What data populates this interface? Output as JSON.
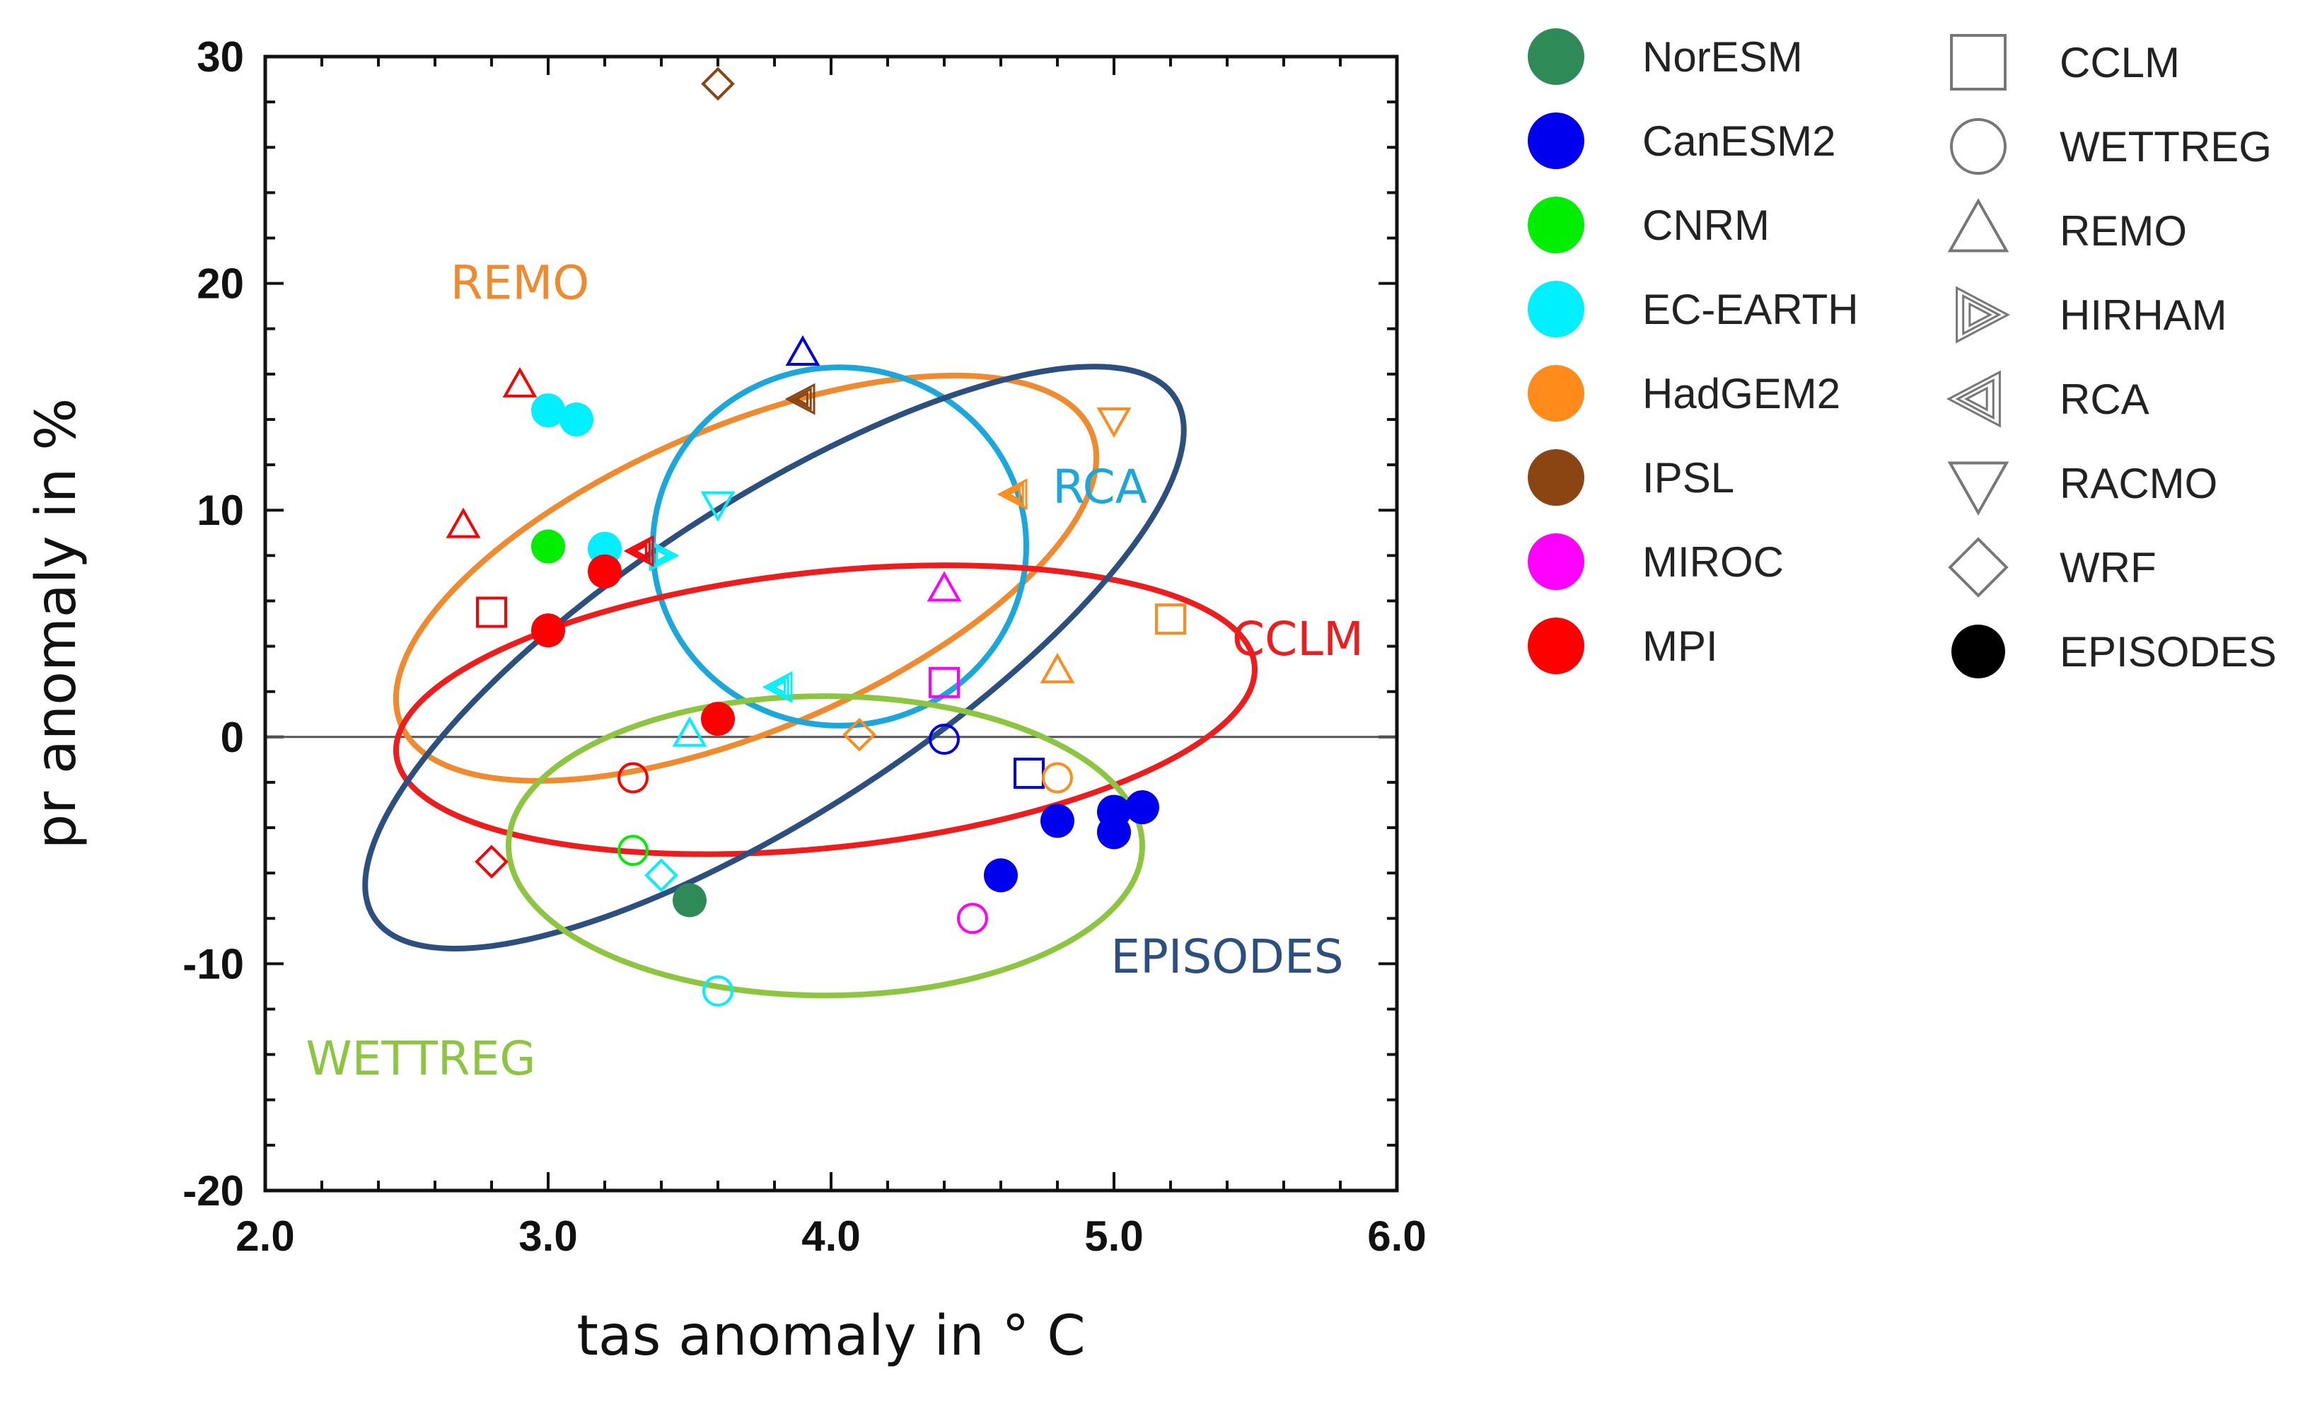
{
  "chart_data": {
    "type": "scatter",
    "xlabel": "tas anomaly in ° C",
    "ylabel": "pr anomaly in %",
    "xlim": [
      2.0,
      6.0
    ],
    "ylim": [
      -20,
      30
    ],
    "xticks": [
      "2.0",
      "3.0",
      "4.0",
      "5.0",
      "6.0"
    ],
    "yticks": [
      "30",
      "20",
      "10",
      "0",
      "-10",
      "-20"
    ],
    "gcm_legend": [
      {
        "name": "NorESM",
        "color": "#2e8b57"
      },
      {
        "name": "CanESM2",
        "color": "#0000ee"
      },
      {
        "name": "CNRM",
        "color": "#00ee00"
      },
      {
        "name": "EC-EARTH",
        "color": "#00f0ff"
      },
      {
        "name": "HadGEM2",
        "color": "#ff8c1a"
      },
      {
        "name": "IPSL",
        "color": "#8b4513"
      },
      {
        "name": "MIROC",
        "color": "#ff00ff"
      },
      {
        "name": "MPI",
        "color": "#ff0000"
      }
    ],
    "rcm_legend": [
      {
        "name": "CCLM",
        "marker": "square"
      },
      {
        "name": "WETTREG",
        "marker": "circle"
      },
      {
        "name": "REMO",
        "marker": "triangle-up"
      },
      {
        "name": "HIRHAM",
        "marker": "triangle-right"
      },
      {
        "name": "RCA",
        "marker": "triangle-left"
      },
      {
        "name": "RACMO",
        "marker": "triangle-down"
      },
      {
        "name": "WRF",
        "marker": "diamond"
      },
      {
        "name": "EPISODES",
        "marker": "filled-circle"
      }
    ],
    "ellipses": [
      {
        "label": "REMO",
        "color": "#f08a2c",
        "cx": 3.7,
        "cy": 7.0,
        "rx": 1.3,
        "ry": 7.0,
        "label_x": 2.9,
        "label_y": 20.0
      },
      {
        "label": "RCA",
        "color": "#1aa7dc",
        "cx": 4.03,
        "cy": 8.4,
        "rx": 0.66,
        "ry": 7.9,
        "label_x": 4.95,
        "label_y": 11.0
      },
      {
        "label": "CCLM",
        "color": "#f01b1b",
        "cx": 3.98,
        "cy": 1.2,
        "rx": 1.55,
        "ry": 5.0,
        "label_x": 5.65,
        "label_y": 4.3
      },
      {
        "label": "EPISODES",
        "color": "#2b4f7e",
        "cx": 3.8,
        "cy": 3.5,
        "rx": 1.5,
        "ry": 11.5,
        "label_x": 5.4,
        "label_y": -9.7
      },
      {
        "label": "WETTREG",
        "color": "#8cc63e",
        "cx": 3.98,
        "cy": -4.8,
        "rx": 1.12,
        "ry": 6.6,
        "label_x": 2.55,
        "label_y": -14.2
      }
    ],
    "points": [
      {
        "gcm": "NorESM",
        "rcm": "EPISODES",
        "x": 3.5,
        "y": -7.2
      },
      {
        "gcm": "CanESM2",
        "rcm": "EPISODES",
        "x": 4.6,
        "y": -6.1
      },
      {
        "gcm": "CanESM2",
        "rcm": "EPISODES",
        "x": 4.8,
        "y": -3.7
      },
      {
        "gcm": "CanESM2",
        "rcm": "EPISODES",
        "x": 5.0,
        "y": -3.3
      },
      {
        "gcm": "CanESM2",
        "rcm": "EPISODES",
        "x": 5.0,
        "y": -4.2
      },
      {
        "gcm": "CanESM2",
        "rcm": "EPISODES",
        "x": 5.1,
        "y": -3.1
      },
      {
        "gcm": "CNRM",
        "rcm": "EPISODES",
        "x": 3.0,
        "y": 8.4
      },
      {
        "gcm": "EC-EARTH",
        "rcm": "EPISODES",
        "x": 3.0,
        "y": 14.4
      },
      {
        "gcm": "EC-EARTH",
        "rcm": "EPISODES",
        "x": 3.1,
        "y": 14.0
      },
      {
        "gcm": "EC-EARTH",
        "rcm": "EPISODES",
        "x": 3.2,
        "y": 8.3
      },
      {
        "gcm": "MPI",
        "rcm": "EPISODES",
        "x": 3.0,
        "y": 4.7
      },
      {
        "gcm": "MPI",
        "rcm": "EPISODES",
        "x": 3.2,
        "y": 7.3
      },
      {
        "gcm": "MPI",
        "rcm": "EPISODES",
        "x": 3.6,
        "y": 0.8
      },
      {
        "gcm": "MPI",
        "rcm": "CCLM",
        "x": 2.8,
        "y": 5.5
      },
      {
        "gcm": "CanESM2",
        "rcm": "CCLM",
        "x": 4.7,
        "y": -1.6
      },
      {
        "gcm": "HadGEM2",
        "rcm": "CCLM",
        "x": 5.2,
        "y": 5.2
      },
      {
        "gcm": "MIROC",
        "rcm": "CCLM",
        "x": 4.4,
        "y": 2.4
      },
      {
        "gcm": "MPI",
        "rcm": "WETTREG",
        "x": 3.3,
        "y": -1.8
      },
      {
        "gcm": "CNRM",
        "rcm": "WETTREG",
        "x": 3.3,
        "y": -5.0
      },
      {
        "gcm": "EC-EARTH",
        "rcm": "WETTREG",
        "x": 3.6,
        "y": -11.2
      },
      {
        "gcm": "CanESM2",
        "rcm": "WETTREG",
        "x": 4.4,
        "y": -0.1
      },
      {
        "gcm": "HadGEM2",
        "rcm": "WETTREG",
        "x": 4.8,
        "y": -1.8
      },
      {
        "gcm": "MIROC",
        "rcm": "WETTREG",
        "x": 4.5,
        "y": -8.0
      },
      {
        "gcm": "MPI",
        "rcm": "REMO",
        "x": 2.9,
        "y": 15.5
      },
      {
        "gcm": "MPI",
        "rcm": "REMO",
        "x": 2.7,
        "y": 9.3
      },
      {
        "gcm": "CanESM2",
        "rcm": "REMO",
        "x": 3.9,
        "y": 16.9
      },
      {
        "gcm": "MIROC",
        "rcm": "REMO",
        "x": 4.4,
        "y": 6.5
      },
      {
        "gcm": "HadGEM2",
        "rcm": "REMO",
        "x": 4.8,
        "y": 2.9
      },
      {
        "gcm": "EC-EARTH",
        "rcm": "REMO",
        "x": 3.5,
        "y": 0.1
      },
      {
        "gcm": "EC-EARTH",
        "rcm": "HIRHAM",
        "x": 3.4,
        "y": 8.0
      },
      {
        "gcm": "MPI",
        "rcm": "RCA",
        "x": 3.33,
        "y": 8.2
      },
      {
        "gcm": "IPSL",
        "rcm": "RCA",
        "x": 3.9,
        "y": 14.9
      },
      {
        "gcm": "HadGEM2",
        "rcm": "RCA",
        "x": 4.65,
        "y": 10.7
      },
      {
        "gcm": "EC-EARTH",
        "rcm": "RCA",
        "x": 3.82,
        "y": 2.2
      },
      {
        "gcm": "EC-EARTH",
        "rcm": "RACMO",
        "x": 3.6,
        "y": 10.3
      },
      {
        "gcm": "HadGEM2",
        "rcm": "RACMO",
        "x": 5.0,
        "y": 14.0
      },
      {
        "gcm": "IPSL",
        "rcm": "WRF",
        "x": 3.6,
        "y": 28.8
      },
      {
        "gcm": "HadGEM2",
        "rcm": "WRF",
        "x": 4.1,
        "y": 0.1
      },
      {
        "gcm": "MPI",
        "rcm": "WRF",
        "x": 2.8,
        "y": -5.5
      },
      {
        "gcm": "EC-EARTH",
        "rcm": "WRF",
        "x": 3.4,
        "y": -6.1
      }
    ]
  }
}
